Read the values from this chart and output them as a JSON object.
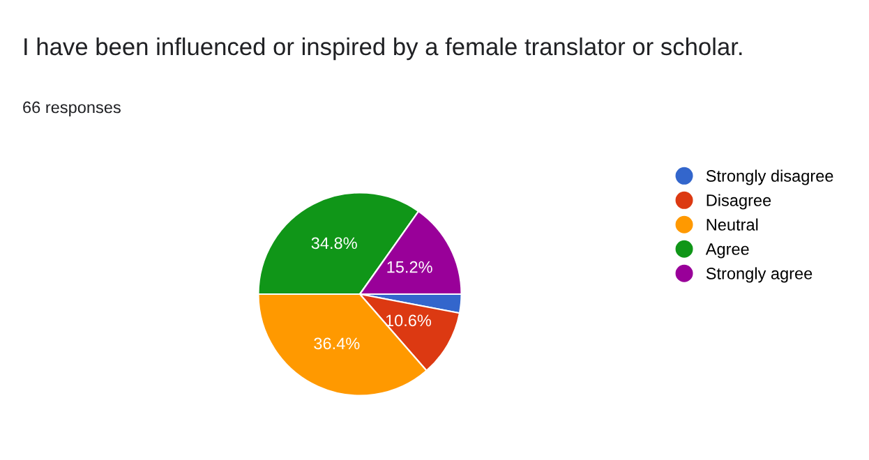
{
  "chart_data": {
    "type": "pie",
    "title": "I have been influenced or inspired by a female translator or scholar.",
    "annotations": [
      "66 responses"
    ],
    "categories": [
      "Strongly disagree",
      "Disagree",
      "Neutral",
      "Agree",
      "Strongly agree"
    ],
    "values": [
      3.0,
      10.6,
      36.4,
      34.8,
      15.2
    ],
    "colors": [
      "#3366cc",
      "#dc3912",
      "#ff9900",
      "#109618",
      "#990099"
    ],
    "value_labels": [
      null,
      "10.6%",
      "36.4%",
      "34.8%",
      "15.2%"
    ],
    "legend": "right"
  }
}
